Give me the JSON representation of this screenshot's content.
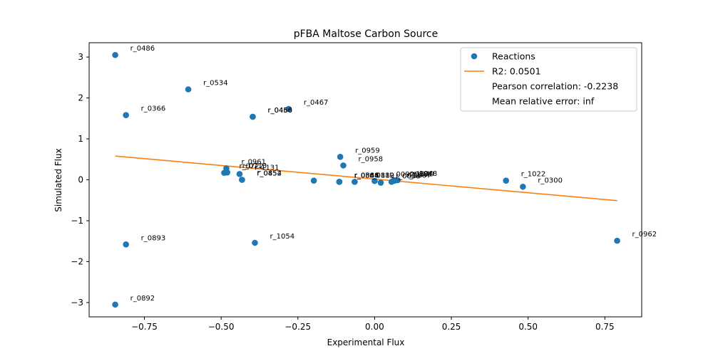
{
  "chart_data": {
    "type": "scatter",
    "title": "pFBA Maltose Carbon Source",
    "xlabel": "Experimental Flux",
    "ylabel": "Simulated Flux",
    "xlim": [
      -0.93,
      0.87
    ],
    "ylim": [
      -3.35,
      3.35
    ],
    "xticks": [
      -0.75,
      -0.5,
      -0.25,
      0.0,
      0.25,
      0.5,
      0.75
    ],
    "xtick_labels": [
      "−0.75",
      "−0.50",
      "−0.25",
      "0.00",
      "0.25",
      "0.50",
      "0.75"
    ],
    "yticks": [
      -3,
      -2,
      -1,
      0,
      1,
      2,
      3
    ],
    "ytick_labels": [
      "−3",
      "−2",
      "−1",
      "0",
      "1",
      "2",
      "3"
    ],
    "grid": false,
    "legend_position": "upper right",
    "colors": {
      "points": "#1f77b4",
      "fit": "#ff7f0e"
    },
    "series": [
      {
        "name": "Reactions",
        "kind": "scatter",
        "points": [
          {
            "x": -0.845,
            "y": 3.05,
            "label": "r_0486"
          },
          {
            "x": -0.607,
            "y": 2.21,
            "label": "r_0534"
          },
          {
            "x": -0.81,
            "y": 1.58,
            "label": "r_0366"
          },
          {
            "x": -0.397,
            "y": 1.54,
            "label": "r_0450"
          },
          {
            "x": -0.397,
            "y": 1.54,
            "label": "r_0466"
          },
          {
            "x": -0.28,
            "y": 1.73,
            "label": "r_0467"
          },
          {
            "x": -0.483,
            "y": 0.28,
            "label": "r_0961"
          },
          {
            "x": -0.49,
            "y": 0.17,
            "label": "r_0722"
          },
          {
            "x": -0.48,
            "y": 0.18,
            "label": "r_0713"
          },
          {
            "x": -0.44,
            "y": 0.14,
            "label": "r_1131"
          },
          {
            "x": -0.432,
            "y": 0.0,
            "label": "r_0454"
          },
          {
            "x": -0.432,
            "y": 0.0,
            "label": "r_0852"
          },
          {
            "x": -0.198,
            "y": -0.02,
            "label": "r_0959",
            "label_hidden": true
          },
          {
            "x": -0.112,
            "y": 0.56,
            "label": "r_0959"
          },
          {
            "x": -0.102,
            "y": 0.35,
            "label": "r_0958"
          },
          {
            "x": -0.115,
            "y": -0.05,
            "label": "r_0886"
          },
          {
            "x": -0.115,
            "y": -0.05,
            "label": "r_0888"
          },
          {
            "x": -0.115,
            "y": -0.05,
            "label": "r_0544"
          },
          {
            "x": -0.065,
            "y": -0.05,
            "label": "r_0112"
          },
          {
            "x": -0.065,
            "y": -0.05,
            "label": "r_0889"
          },
          {
            "x": 0.0,
            "y": -0.03,
            "label": "r_0092"
          },
          {
            "x": 0.02,
            "y": -0.07,
            "label": "r_0098"
          },
          {
            "x": 0.055,
            "y": -0.05,
            "label": "r_0887"
          },
          {
            "x": 0.06,
            "y": -0.03,
            "label": "r_0887"
          },
          {
            "x": 0.065,
            "y": -0.02,
            "label": "r_1049"
          },
          {
            "x": 0.075,
            "y": -0.01,
            "label": "r_1048"
          },
          {
            "x": 0.428,
            "y": -0.02,
            "label": "r_1022"
          },
          {
            "x": 0.483,
            "y": -0.17,
            "label": "r_0300"
          },
          {
            "x": 0.79,
            "y": -1.49,
            "label": "r_0962"
          },
          {
            "x": -0.81,
            "y": -1.58,
            "label": "r_0893"
          },
          {
            "x": -0.39,
            "y": -1.54,
            "label": "r_1054"
          },
          {
            "x": -0.845,
            "y": -3.05,
            "label": "r_0892"
          }
        ]
      },
      {
        "name": "R2: 0.0501",
        "kind": "line",
        "x": [
          -0.845,
          0.79
        ],
        "y": [
          0.58,
          -0.51
        ]
      }
    ],
    "legend": [
      {
        "label": "Reactions",
        "marker": "dot"
      },
      {
        "label": "R2: 0.0501",
        "marker": "line"
      },
      {
        "label": "Pearson correlation: -0.2238",
        "marker": "none"
      },
      {
        "label": "Mean relative error: inf",
        "marker": "none"
      }
    ]
  }
}
